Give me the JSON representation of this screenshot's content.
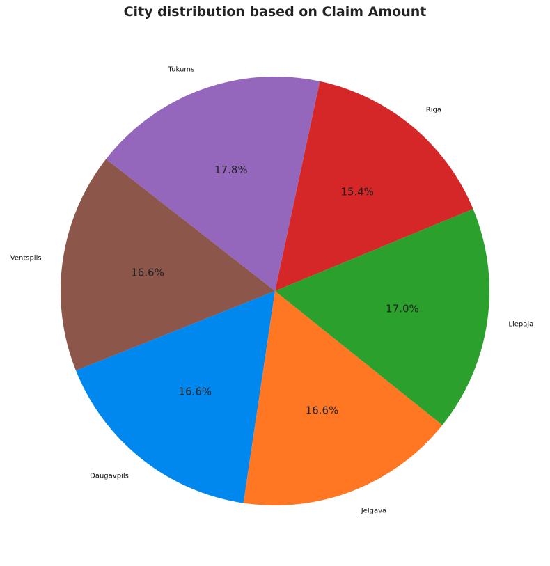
{
  "chart_data": {
    "type": "pie",
    "title": "City distribution based on Claim Amount",
    "slices": [
      {
        "label": "Riga",
        "value": 15.4,
        "pct_label": "15.4%",
        "color": "#d62728"
      },
      {
        "label": "Tukums",
        "value": 17.8,
        "pct_label": "17.8%",
        "color": "#9467bd"
      },
      {
        "label": "Ventspils",
        "value": 16.6,
        "pct_label": "16.6%",
        "color": "#8c564b"
      },
      {
        "label": "Daugavpils",
        "value": 16.6,
        "pct_label": "16.6%",
        "color": "#0088ee"
      },
      {
        "label": "Jelgava",
        "value": 16.6,
        "pct_label": "16.6%",
        "color": "#ff7722"
      },
      {
        "label": "Liepaja",
        "value": 17.0,
        "pct_label": "17.0%",
        "color": "#2ca02c"
      }
    ],
    "start_angle_deg": 22.5,
    "direction": "counterclockwise",
    "legend": "none"
  }
}
